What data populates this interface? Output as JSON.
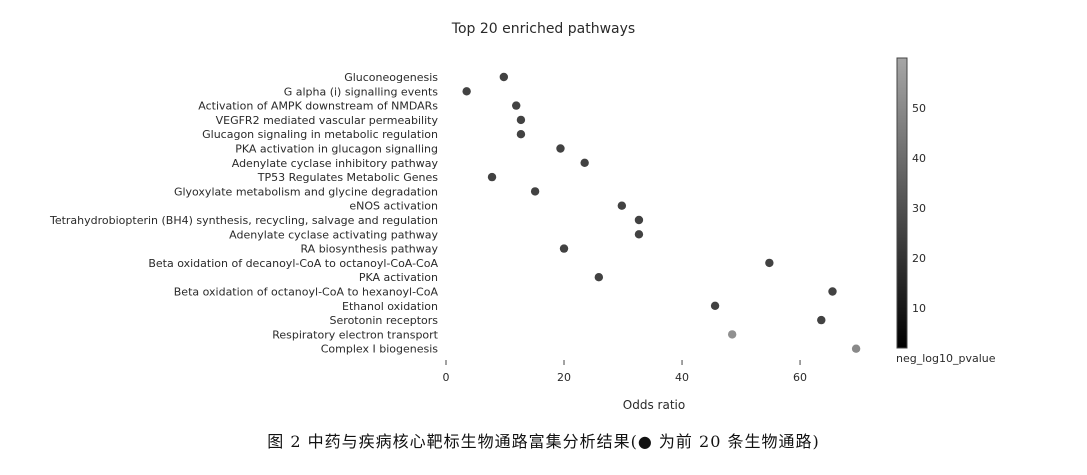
{
  "title": "Top 20 enriched pathways",
  "caption": "图 2  中药与疾病核心靶标生物通路富集分析结果(● 为前 20 条生物通路)",
  "chart_data": {
    "type": "scatter",
    "title": "Top 20 enriched pathways",
    "xlabel": "Odds ratio",
    "ylabel": "",
    "xlim": [
      0,
      70.5
    ],
    "xticks": [
      0,
      20,
      40,
      60
    ],
    "grid": false,
    "colorbar": {
      "title": "neg_log10_pvalue",
      "range": [
        2,
        60
      ],
      "ticks": [
        10,
        20,
        30,
        40,
        50
      ],
      "colors": [
        "#000000",
        "#a6a6a6"
      ]
    },
    "categories": [
      "Gluconeogenesis",
      "G alpha (i) signalling events",
      "Activation of AMPK downstream of NMDARs",
      "VEGFR2 mediated vascular permeability",
      "Glucagon signaling in metabolic regulation",
      "PKA activation in glucagon signalling",
      "Adenylate cyclase inhibitory pathway",
      "TP53 Regulates Metabolic Genes",
      "Glyoxylate metabolism and glycine degradation",
      "eNOS activation",
      "Tetrahydrobiopterin (BH4) synthesis, recycling, salvage and regulation",
      "Adenylate cyclase activating pathway",
      "RA biosynthesis pathway",
      "Beta oxidation of decanoyl-CoA to octanoyl-CoA-CoA",
      "PKA activation",
      "Beta oxidation of octanoyl-CoA to hexanoyl-CoA",
      "Ethanol oxidation",
      "Serotonin receptors",
      "Respiratory electron transport",
      "Complex I biogenesis"
    ],
    "x": [
      9.8,
      3.5,
      11.9,
      12.7,
      12.7,
      19.4,
      23.5,
      7.8,
      15.1,
      29.8,
      32.7,
      32.7,
      20.0,
      54.8,
      25.9,
      65.5,
      45.6,
      63.6,
      48.5,
      69.5
    ],
    "color_values": [
      12,
      12,
      12,
      12,
      12,
      12,
      12,
      12,
      12,
      12,
      12,
      12,
      12,
      12,
      12,
      12,
      12,
      12,
      45,
      42
    ]
  }
}
